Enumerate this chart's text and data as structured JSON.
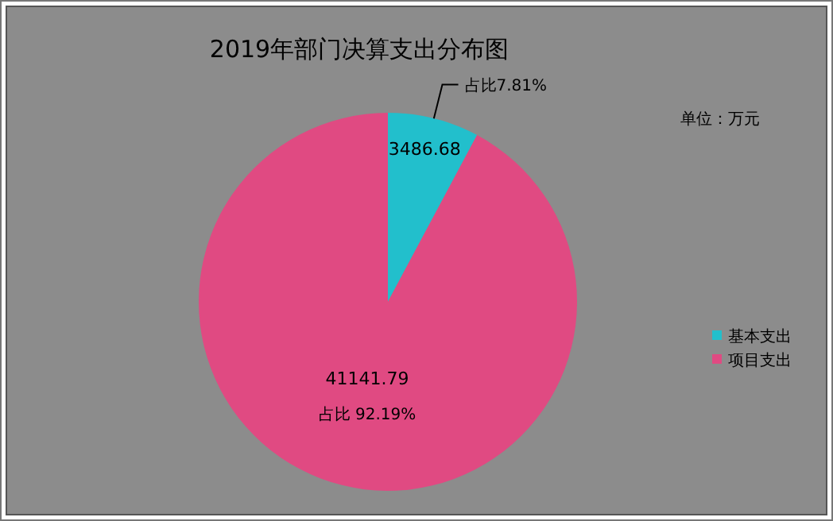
{
  "chart_data": {
    "type": "pie",
    "title": "2019年部门决算支出分布图",
    "categories": [
      "基本支出",
      "项目支出"
    ],
    "values": [
      3486.68,
      41141.79
    ],
    "colors": [
      "#22bfcc",
      "#e04a82"
    ],
    "data_labels": true,
    "legend": "right",
    "annotations": [
      "占比7.81%",
      "占比 92.19%",
      "单位：万元"
    ]
  }
}
